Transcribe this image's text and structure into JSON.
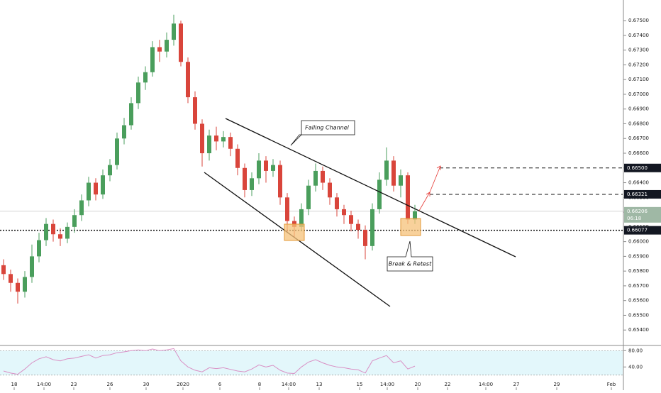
{
  "chart_data": {
    "type": "candlestick",
    "up_color": "#4a9e5c",
    "down_color": "#d9453b",
    "candles": [
      [
        0.6584,
        0.6588,
        0.6574,
        0.6578
      ],
      [
        0.6578,
        0.6581,
        0.6566,
        0.6572
      ],
      [
        0.6572,
        0.6575,
        0.6558,
        0.6566
      ],
      [
        0.6566,
        0.658,
        0.6562,
        0.6576
      ],
      [
        0.6576,
        0.6598,
        0.6572,
        0.659
      ],
      [
        0.659,
        0.6606,
        0.6586,
        0.6601
      ],
      [
        0.6601,
        0.6616,
        0.6597,
        0.6612
      ],
      [
        0.6612,
        0.6615,
        0.66,
        0.6605
      ],
      [
        0.6605,
        0.6609,
        0.6597,
        0.6602
      ],
      [
        0.6602,
        0.6613,
        0.6599,
        0.661
      ],
      [
        0.661,
        0.6622,
        0.6606,
        0.6618
      ],
      [
        0.6618,
        0.6632,
        0.6614,
        0.6628
      ],
      [
        0.6628,
        0.6644,
        0.6624,
        0.664
      ],
      [
        0.664,
        0.6643,
        0.6628,
        0.6632
      ],
      [
        0.6632,
        0.6649,
        0.6629,
        0.6645
      ],
      [
        0.6645,
        0.6656,
        0.6641,
        0.6652
      ],
      [
        0.6652,
        0.6674,
        0.6649,
        0.667
      ],
      [
        0.667,
        0.6684,
        0.6666,
        0.6679
      ],
      [
        0.6679,
        0.6698,
        0.6676,
        0.6694
      ],
      [
        0.6694,
        0.6712,
        0.669,
        0.6708
      ],
      [
        0.6708,
        0.6719,
        0.6703,
        0.6715
      ],
      [
        0.6715,
        0.6736,
        0.6712,
        0.6732
      ],
      [
        0.6732,
        0.6737,
        0.6722,
        0.6729
      ],
      [
        0.6729,
        0.6742,
        0.6725,
        0.6737
      ],
      [
        0.6737,
        0.6754,
        0.6733,
        0.6748
      ],
      [
        0.6748,
        0.675,
        0.6719,
        0.6722
      ],
      [
        0.6722,
        0.6725,
        0.6694,
        0.6698
      ],
      [
        0.6698,
        0.6702,
        0.6676,
        0.668
      ],
      [
        0.668,
        0.6683,
        0.6651,
        0.666
      ],
      [
        0.666,
        0.6676,
        0.6655,
        0.6672
      ],
      [
        0.6672,
        0.6678,
        0.6662,
        0.6668
      ],
      [
        0.6668,
        0.6675,
        0.6664,
        0.6671
      ],
      [
        0.6671,
        0.6674,
        0.6658,
        0.6663
      ],
      [
        0.6663,
        0.6666,
        0.6645,
        0.665
      ],
      [
        0.665,
        0.6653,
        0.663,
        0.6635
      ],
      [
        0.6635,
        0.6647,
        0.6631,
        0.6643
      ],
      [
        0.6643,
        0.666,
        0.6639,
        0.6655
      ],
      [
        0.6655,
        0.6658,
        0.664,
        0.6648
      ],
      [
        0.6648,
        0.6656,
        0.6644,
        0.6652
      ],
      [
        0.6652,
        0.6655,
        0.6625,
        0.663
      ],
      [
        0.663,
        0.6633,
        0.6606,
        0.6614
      ],
      [
        0.6614,
        0.6617,
        0.6603,
        0.661
      ],
      [
        0.661,
        0.6626,
        0.6607,
        0.6622
      ],
      [
        0.6622,
        0.6642,
        0.6618,
        0.6638
      ],
      [
        0.6638,
        0.6653,
        0.6634,
        0.6648
      ],
      [
        0.6648,
        0.6651,
        0.6635,
        0.664
      ],
      [
        0.664,
        0.6643,
        0.6625,
        0.663
      ],
      [
        0.663,
        0.6633,
        0.6617,
        0.6622
      ],
      [
        0.6622,
        0.6625,
        0.6612,
        0.6618
      ],
      [
        0.6618,
        0.6621,
        0.6607,
        0.6612
      ],
      [
        0.6612,
        0.6615,
        0.6602,
        0.6608
      ],
      [
        0.6608,
        0.6611,
        0.6588,
        0.6597
      ],
      [
        0.6597,
        0.6626,
        0.6594,
        0.6622
      ],
      [
        0.6622,
        0.6647,
        0.6619,
        0.6642
      ],
      [
        0.6642,
        0.6664,
        0.6638,
        0.6655
      ],
      [
        0.6655,
        0.6658,
        0.6634,
        0.6638
      ],
      [
        0.6638,
        0.6649,
        0.663,
        0.6645
      ],
      [
        0.6645,
        0.6647,
        0.6612,
        0.6615
      ],
      [
        0.6615,
        0.6625,
        0.6612,
        0.66206
      ]
    ],
    "xlim": [
      -0.5,
      87.3
    ],
    "xticks": [
      {
        "value": 1.5,
        "label": "18"
      },
      {
        "value": 5.7,
        "label": "14:00"
      },
      {
        "value": 9.9,
        "label": "23"
      },
      {
        "value": 15,
        "label": "26"
      },
      {
        "value": 20.1,
        "label": "30"
      },
      {
        "value": 25.3,
        "label": "2020"
      },
      {
        "value": 30.5,
        "label": "6"
      },
      {
        "value": 36.1,
        "label": "8"
      },
      {
        "value": 40.2,
        "label": "14:00"
      },
      {
        "value": 44.5,
        "label": "13"
      },
      {
        "value": 50.2,
        "label": "15"
      },
      {
        "value": 54.1,
        "label": "14:00"
      },
      {
        "value": 58.4,
        "label": "20"
      },
      {
        "value": 62.6,
        "label": "22"
      },
      {
        "value": 68,
        "label": "14:00"
      },
      {
        "value": 72.3,
        "label": "27"
      },
      {
        "value": 78,
        "label": "29"
      },
      {
        "value": 85.7,
        "label": "Feb"
      }
    ],
    "ylim": [
      0.653,
      0.6764
    ],
    "yticks": [
      {
        "value": 0.654,
        "label": "0.65400"
      },
      {
        "value": 0.655,
        "label": "0.65500"
      },
      {
        "value": 0.656,
        "label": "0.65600"
      },
      {
        "value": 0.657,
        "label": "0.65700"
      },
      {
        "value": 0.658,
        "label": "0.65800"
      },
      {
        "value": 0.659,
        "label": "0.65900"
      },
      {
        "value": 0.66,
        "label": "0.66000"
      },
      {
        "value": 0.661,
        "label": "0.66100"
      },
      {
        "value": 0.662,
        "label": "0.66200"
      },
      {
        "value": 0.663,
        "label": "0.66300"
      },
      {
        "value": 0.664,
        "label": "0.66400"
      },
      {
        "value": 0.665,
        "label": "0.66500"
      },
      {
        "value": 0.666,
        "label": "0.66600"
      },
      {
        "value": 0.667,
        "label": "0.66700"
      },
      {
        "value": 0.668,
        "label": "0.66800"
      },
      {
        "value": 0.669,
        "label": "0.66900"
      },
      {
        "value": 0.67,
        "label": "0.67000"
      },
      {
        "value": 0.671,
        "label": "0.67100"
      },
      {
        "value": 0.672,
        "label": "0.67200"
      },
      {
        "value": 0.673,
        "label": "0.67300"
      },
      {
        "value": 0.674,
        "label": "0.67400"
      },
      {
        "value": 0.675,
        "label": "0.67500"
      }
    ],
    "levels": [
      {
        "value": 0.665,
        "label": "0.66500",
        "style": "dashed"
      },
      {
        "value": 0.66321,
        "label": "0.66321",
        "style": "dashed"
      },
      {
        "value": 0.66077,
        "label": "0.66077",
        "style": "dotted"
      }
    ],
    "last_price": {
      "value": 0.66206,
      "label": "0.66206",
      "countdown": "06:18"
    },
    "annotations": [
      "Falling Channel",
      "Break & Retest"
    ],
    "indicator": {
      "type": "line",
      "color": "#d98fc4",
      "band_color": "#e3f7fb",
      "band": [
        20,
        80
      ],
      "ylim": [
        -10,
        91
      ],
      "yticks": [
        {
          "value": 80,
          "label": "80.00"
        },
        {
          "value": 40,
          "label": "40.00"
        }
      ],
      "values": [
        30,
        25,
        22,
        35,
        50,
        60,
        65,
        58,
        55,
        60,
        62,
        66,
        70,
        62,
        68,
        70,
        75,
        77,
        80,
        82,
        80,
        84,
        80,
        82,
        85,
        55,
        40,
        32,
        28,
        38,
        36,
        38,
        34,
        30,
        28,
        35,
        45,
        40,
        44,
        32,
        25,
        24,
        40,
        52,
        58,
        50,
        44,
        40,
        38,
        35,
        33,
        25,
        55,
        62,
        68,
        50,
        55,
        35,
        42
      ]
    }
  }
}
